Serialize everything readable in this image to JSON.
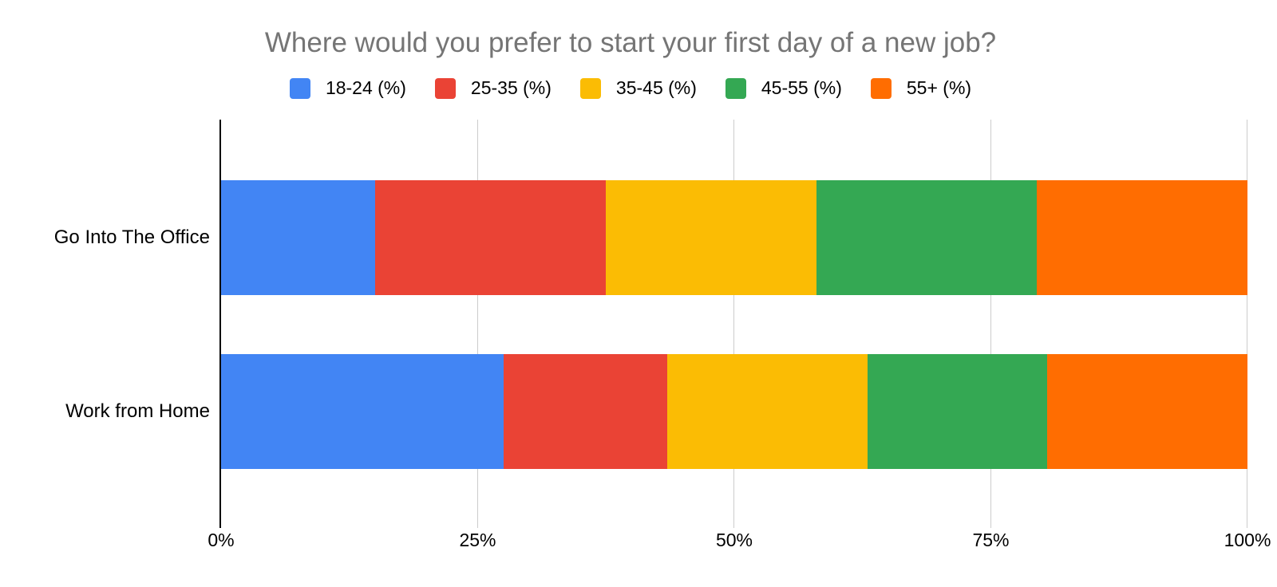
{
  "chart_data": {
    "type": "bar",
    "orientation": "horizontal",
    "stacked": true,
    "title": "Where would you prefer to start your first day of a new job?",
    "categories": [
      "Go Into The Office",
      "Work from Home"
    ],
    "series": [
      {
        "name": "18-24 (%)",
        "color": "#4285F4",
        "values": [
          15,
          27.5
        ]
      },
      {
        "name": "25-35 (%)",
        "color": "#EA4335",
        "values": [
          22.5,
          16
        ]
      },
      {
        "name": "35-45 (%)",
        "color": "#FBBC04",
        "values": [
          20.5,
          19.5
        ]
      },
      {
        "name": "45-55 (%)",
        "color": "#34A853",
        "values": [
          21.5,
          17.5
        ]
      },
      {
        "name": "55+ (%)",
        "color": "#FF6D01",
        "values": [
          20.5,
          19.5
        ]
      }
    ],
    "xlabel": "",
    "ylabel": "",
    "x_axis": {
      "min": 0,
      "max": 100,
      "ticks": [
        "0%",
        "25%",
        "50%",
        "75%",
        "100%"
      ]
    },
    "legend_position": "top",
    "grid": true
  },
  "style": {
    "title_color": "#757575",
    "label_color": "#000000",
    "gridline_color": "#cccccc",
    "axis_line_color": "#000000",
    "background": "#ffffff"
  }
}
